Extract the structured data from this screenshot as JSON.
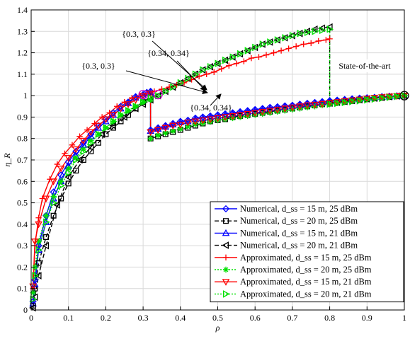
{
  "chart_data": {
    "type": "line",
    "xlabel": "ρ",
    "ylabel": "η_R",
    "xlim": [
      0,
      1
    ],
    "ylim": [
      0,
      1.4
    ],
    "xticks": [
      "0",
      "0.1",
      "0.2",
      "0.3",
      "0.4",
      "0.5",
      "0.6",
      "0.7",
      "0.8",
      "0.9",
      "1"
    ],
    "yticks": [
      "0",
      "0.1",
      "0.2",
      "0.3",
      "0.4",
      "0.5",
      "0.6",
      "0.7",
      "0.8",
      "0.9",
      "1",
      "1.1",
      "1.2",
      "1.3",
      "1.4"
    ],
    "grid": true,
    "legend_position": "bottom-right",
    "annotations": [
      {
        "text": "{0.3, 0.3}",
        "target": [
          0.3,
          1.005
        ]
      },
      {
        "text": "{0.3, 0.3}",
        "target": [
          0.3,
          1.005
        ]
      },
      {
        "text": "{0.34, 0.34}",
        "target": [
          0.34,
          1.005
        ]
      },
      {
        "text": "{0.34, 0.34}",
        "target": [
          0.34,
          1.005
        ]
      },
      {
        "text": "State-of-the-art",
        "target": [
          1.0,
          1.0
        ]
      }
    ],
    "series": [
      {
        "name": "Numerical, d_ss = 15 m, 25 dBm",
        "color": "#0000ff",
        "marker": "diamond",
        "dash": "solid",
        "x": [
          0.005,
          0.01,
          0.02,
          0.04,
          0.06,
          0.08,
          0.1,
          0.12,
          0.14,
          0.16,
          0.18,
          0.2,
          0.22,
          0.24,
          0.26,
          0.28,
          0.3,
          0.31,
          0.32,
          0.32,
          0.34,
          0.36,
          0.38,
          0.4,
          0.42,
          0.44,
          0.46,
          0.48,
          0.5,
          0.52,
          0.54,
          0.56,
          0.58,
          0.6,
          0.62,
          0.64,
          0.66,
          0.68,
          0.7,
          0.72,
          0.74,
          0.76,
          0.78,
          0.8,
          0.8,
          0.82,
          0.84,
          0.86,
          0.88,
          0.9,
          0.92,
          0.94,
          0.96,
          0.98,
          1.0
        ],
        "y": [
          0.04,
          0.14,
          0.3,
          0.44,
          0.55,
          0.63,
          0.69,
          0.74,
          0.78,
          0.82,
          0.86,
          0.89,
          0.92,
          0.95,
          0.97,
          0.995,
          1.005,
          1.015,
          1.02,
          0.84,
          0.85,
          0.86,
          0.87,
          0.88,
          0.885,
          0.895,
          0.9,
          0.905,
          0.91,
          0.915,
          0.92,
          0.925,
          0.93,
          0.935,
          0.94,
          0.945,
          0.948,
          0.952,
          0.955,
          0.96,
          0.964,
          0.968,
          0.972,
          0.976,
          0.976,
          0.979,
          0.982,
          0.985,
          0.988,
          0.99,
          0.992,
          0.995,
          0.997,
          0.999,
          1.0
        ]
      },
      {
        "name": "Numerical, d_ss = 20 m, 25 dBm",
        "color": "#000000",
        "marker": "square",
        "dash": "dashed",
        "x": [
          0.005,
          0.01,
          0.02,
          0.04,
          0.06,
          0.08,
          0.1,
          0.12,
          0.14,
          0.16,
          0.18,
          0.2,
          0.22,
          0.24,
          0.26,
          0.28,
          0.3,
          0.32,
          0.32,
          0.34,
          0.36,
          0.38,
          0.4,
          0.42,
          0.44,
          0.46,
          0.48,
          0.5,
          0.52,
          0.54,
          0.56,
          0.58,
          0.6,
          0.62,
          0.64,
          0.66,
          0.68,
          0.7,
          0.72,
          0.74,
          0.76,
          0.78,
          0.8,
          0.8,
          0.82,
          0.84,
          0.86,
          0.88,
          0.9,
          0.92,
          0.94,
          0.96,
          0.98,
          1.0
        ],
        "y": [
          0.02,
          0.1,
          0.22,
          0.34,
          0.44,
          0.52,
          0.59,
          0.65,
          0.7,
          0.74,
          0.78,
          0.82,
          0.85,
          0.88,
          0.91,
          0.94,
          0.97,
          0.995,
          0.8,
          0.81,
          0.82,
          0.83,
          0.84,
          0.85,
          0.86,
          0.87,
          0.88,
          0.885,
          0.89,
          0.9,
          0.905,
          0.91,
          0.915,
          0.92,
          0.925,
          0.93,
          0.935,
          0.94,
          0.945,
          0.95,
          0.955,
          0.96,
          0.963,
          0.963,
          0.967,
          0.971,
          0.975,
          0.979,
          0.983,
          0.987,
          0.99,
          0.994,
          0.997,
          1.0
        ]
      },
      {
        "name": "Numerical, d_ss = 15 m, 21 dBm",
        "color": "#0000ff",
        "marker": "triangle-up",
        "dash": "solid",
        "x": [
          0.005,
          0.01,
          0.02,
          0.04,
          0.06,
          0.08,
          0.1,
          0.12,
          0.14,
          0.16,
          0.18,
          0.2,
          0.22,
          0.24,
          0.26,
          0.28,
          0.3,
          0.31,
          0.32,
          0.32,
          0.34,
          0.36,
          0.38,
          0.4,
          0.42,
          0.44,
          0.46,
          0.48,
          0.5,
          0.52,
          0.54,
          0.56,
          0.58,
          0.6,
          0.62,
          0.64,
          0.66,
          0.68,
          0.7,
          0.72,
          0.74,
          0.76,
          0.78,
          0.8,
          0.8,
          0.82,
          0.84,
          0.86,
          0.88,
          0.9,
          0.92,
          0.94,
          0.96,
          0.98,
          1.0
        ],
        "y": [
          0.03,
          0.12,
          0.28,
          0.41,
          0.52,
          0.6,
          0.67,
          0.72,
          0.77,
          0.81,
          0.85,
          0.88,
          0.91,
          0.94,
          0.965,
          0.99,
          1.0,
          1.01,
          1.015,
          0.835,
          0.845,
          0.855,
          0.865,
          0.875,
          0.88,
          0.89,
          0.895,
          0.9,
          0.905,
          0.91,
          0.915,
          0.92,
          0.925,
          0.93,
          0.935,
          0.94,
          0.944,
          0.948,
          0.952,
          0.956,
          0.96,
          0.964,
          0.968,
          0.972,
          0.972,
          0.976,
          0.979,
          0.982,
          0.985,
          0.988,
          0.991,
          0.994,
          0.996,
          0.998,
          1.0
        ]
      },
      {
        "name": "Numerical, d_ss = 20 m, 21 dBm",
        "color": "#000000",
        "marker": "triangle-left",
        "dash": "dashed",
        "x": [
          0.005,
          0.01,
          0.02,
          0.04,
          0.07,
          0.1,
          0.13,
          0.16,
          0.19,
          0.22,
          0.25,
          0.28,
          0.3,
          0.32,
          0.34,
          0.36,
          0.38,
          0.4,
          0.42,
          0.44,
          0.46,
          0.48,
          0.5,
          0.52,
          0.54,
          0.56,
          0.58,
          0.6,
          0.62,
          0.64,
          0.66,
          0.68,
          0.7,
          0.72,
          0.74,
          0.76,
          0.78,
          0.8,
          0.8,
          0.82,
          0.84,
          0.86,
          0.88,
          0.9,
          0.92,
          0.94,
          0.96,
          0.98,
          1.0
        ],
        "y": [
          0.01,
          0.06,
          0.16,
          0.3,
          0.49,
          0.62,
          0.7,
          0.76,
          0.82,
          0.86,
          0.9,
          0.94,
          0.96,
          0.98,
          1.0,
          1.02,
          1.04,
          1.06,
          1.08,
          1.1,
          1.12,
          1.135,
          1.15,
          1.165,
          1.18,
          1.195,
          1.21,
          1.225,
          1.24,
          1.25,
          1.26,
          1.27,
          1.28,
          1.29,
          1.3,
          1.31,
          1.315,
          1.32,
          0.965,
          0.969,
          0.973,
          0.977,
          0.981,
          0.985,
          0.988,
          0.992,
          0.995,
          0.998,
          1.0
        ]
      },
      {
        "name": "Approximated, d_ss = 15 m, 25 dBm",
        "color": "#ff0000",
        "marker": "plus",
        "dash": "solid",
        "x": [
          0.005,
          0.01,
          0.02,
          0.03,
          0.05,
          0.07,
          0.09,
          0.11,
          0.13,
          0.15,
          0.17,
          0.19,
          0.21,
          0.23,
          0.25,
          0.27,
          0.29,
          0.31,
          0.33,
          0.35,
          0.37,
          0.39,
          0.41,
          0.43,
          0.45,
          0.47,
          0.49,
          0.51,
          0.53,
          0.55,
          0.57,
          0.59,
          0.61,
          0.63,
          0.65,
          0.67,
          0.69,
          0.71,
          0.73,
          0.75,
          0.77,
          0.79,
          0.8
        ],
        "y": [
          0.1,
          0.3,
          0.43,
          0.52,
          0.61,
          0.68,
          0.73,
          0.77,
          0.81,
          0.84,
          0.87,
          0.9,
          0.92,
          0.95,
          0.97,
          0.99,
          1.0,
          1.01,
          1.02,
          1.03,
          1.04,
          1.05,
          1.06,
          1.075,
          1.09,
          1.1,
          1.11,
          1.125,
          1.14,
          1.15,
          1.16,
          1.175,
          1.18,
          1.19,
          1.2,
          1.21,
          1.22,
          1.23,
          1.24,
          1.245,
          1.255,
          1.26,
          1.265
        ]
      },
      {
        "name": "Approximated, d_ss = 20 m, 25 dBm",
        "color": "#00e000",
        "marker": "asterisk",
        "dash": "dotted",
        "x": [
          0.005,
          0.01,
          0.02,
          0.04,
          0.06,
          0.08,
          0.1,
          0.12,
          0.14,
          0.16,
          0.18,
          0.2,
          0.22,
          0.24,
          0.26,
          0.28,
          0.3,
          0.32,
          0.32,
          0.34,
          0.36,
          0.38,
          0.4,
          0.42,
          0.44,
          0.46,
          0.48,
          0.5,
          0.52,
          0.54,
          0.56,
          0.58,
          0.6,
          0.62,
          0.64,
          0.66,
          0.68,
          0.7,
          0.72,
          0.74,
          0.76,
          0.78,
          0.8,
          0.82,
          0.84,
          0.86,
          0.88,
          0.9,
          0.92,
          0.94,
          0.96,
          0.98,
          1.0
        ],
        "y": [
          0.08,
          0.2,
          0.32,
          0.44,
          0.53,
          0.6,
          0.66,
          0.71,
          0.75,
          0.79,
          0.82,
          0.85,
          0.88,
          0.91,
          0.93,
          0.95,
          0.97,
          0.98,
          0.8,
          0.815,
          0.825,
          0.835,
          0.845,
          0.855,
          0.865,
          0.87,
          0.878,
          0.885,
          0.89,
          0.895,
          0.9,
          0.905,
          0.91,
          0.915,
          0.92,
          0.925,
          0.93,
          0.935,
          0.94,
          0.945,
          0.95,
          0.955,
          0.96,
          0.965,
          0.97,
          0.975,
          0.98,
          0.985,
          0.988,
          0.991,
          0.994,
          0.997,
          1.0
        ]
      },
      {
        "name": "Approximated, d_ss = 15 m, 21 dBm",
        "color": "#ff0000",
        "marker": "triangle-down",
        "dash": "solid",
        "x": [
          0.005,
          0.01,
          0.02,
          0.04,
          0.06,
          0.08,
          0.1,
          0.12,
          0.14,
          0.16,
          0.18,
          0.2,
          0.22,
          0.24,
          0.26,
          0.28,
          0.3,
          0.32,
          0.32,
          0.34,
          0.36,
          0.38,
          0.4,
          0.42,
          0.44,
          0.46,
          0.48,
          0.5,
          0.52,
          0.54,
          0.56,
          0.58,
          0.6,
          0.62,
          0.64,
          0.66,
          0.68,
          0.7,
          0.72,
          0.74,
          0.76,
          0.78,
          0.8,
          0.82,
          0.84,
          0.86,
          0.88,
          0.9,
          0.92,
          0.94,
          0.96,
          0.98,
          1.0
        ],
        "y": [
          0.11,
          0.32,
          0.4,
          0.52,
          0.6,
          0.66,
          0.71,
          0.75,
          0.79,
          0.83,
          0.86,
          0.89,
          0.91,
          0.94,
          0.96,
          0.98,
          1.0,
          1.01,
          0.83,
          0.84,
          0.85,
          0.86,
          0.865,
          0.875,
          0.88,
          0.885,
          0.89,
          0.895,
          0.9,
          0.905,
          0.91,
          0.915,
          0.92,
          0.925,
          0.93,
          0.935,
          0.94,
          0.945,
          0.95,
          0.955,
          0.958,
          0.962,
          0.966,
          0.97,
          0.974,
          0.978,
          0.982,
          0.986,
          0.99,
          0.993,
          0.996,
          0.998,
          1.0
        ]
      },
      {
        "name": "Approximated, d_ss = 20 m, 21 dBm",
        "color": "#00e000",
        "marker": "triangle-right",
        "dash": "dotted",
        "x": [
          0.005,
          0.01,
          0.02,
          0.04,
          0.06,
          0.08,
          0.1,
          0.12,
          0.14,
          0.16,
          0.18,
          0.2,
          0.22,
          0.24,
          0.26,
          0.28,
          0.3,
          0.32,
          0.34,
          0.36,
          0.38,
          0.4,
          0.42,
          0.44,
          0.46,
          0.48,
          0.5,
          0.52,
          0.54,
          0.56,
          0.58,
          0.6,
          0.62,
          0.64,
          0.66,
          0.68,
          0.7,
          0.72,
          0.74,
          0.76,
          0.78,
          0.8,
          0.8,
          0.82,
          0.84,
          0.86,
          0.88,
          0.9,
          0.92,
          0.94,
          0.96,
          0.98,
          1.0
        ],
        "y": [
          0.05,
          0.16,
          0.28,
          0.41,
          0.5,
          0.58,
          0.64,
          0.7,
          0.74,
          0.78,
          0.82,
          0.85,
          0.88,
          0.91,
          0.93,
          0.95,
          0.97,
          0.99,
          1.0,
          1.02,
          1.04,
          1.06,
          1.08,
          1.1,
          1.12,
          1.135,
          1.15,
          1.165,
          1.18,
          1.195,
          1.21,
          1.225,
          1.24,
          1.25,
          1.26,
          1.27,
          1.28,
          1.29,
          1.295,
          1.3,
          1.305,
          1.31,
          0.96,
          0.964,
          0.968,
          0.972,
          0.976,
          0.98,
          0.984,
          0.988,
          0.992,
          0.996,
          1.0
        ]
      }
    ]
  }
}
